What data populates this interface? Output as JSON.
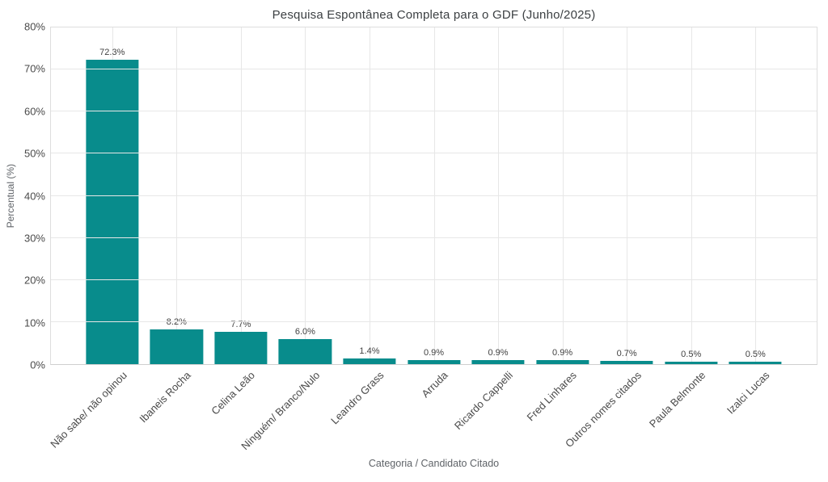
{
  "chart_data": {
    "type": "bar",
    "title": "Pesquisa Espontânea Completa para o GDF (Junho/2025)",
    "xlabel": "Categoria / Candidato Citado",
    "ylabel": "Percentual (%)",
    "categories": [
      "Não sabe/ não opinou",
      "Ibaneis Rocha",
      "Celina Leão",
      "Ninguém/ Branco/Nulo",
      "Leandro Grass",
      "Arruda",
      "Ricardo Cappelli",
      "Fred Linhares",
      "Outros nomes citados",
      "Paula Belmonte",
      "Izalci Lucas"
    ],
    "values": [
      72.3,
      8.2,
      7.7,
      6.0,
      1.4,
      0.9,
      0.9,
      0.9,
      0.7,
      0.5,
      0.5
    ],
    "value_labels": [
      "72.3%",
      "8.2%",
      "7.7%",
      "6.0%",
      "1.4%",
      "0.9%",
      "0.9%",
      "0.9%",
      "0.7%",
      "0.5%",
      "0.5%"
    ],
    "ylim": [
      0,
      80
    ],
    "ytick_step": 10,
    "ytick_labels": [
      "0%",
      "10%",
      "20%",
      "30%",
      "40%",
      "50%",
      "60%",
      "70%",
      "80%"
    ],
    "grid": "horizontal and vertical light gray gridlines, full border box",
    "legend_position": "none",
    "bar_color": "#088C8C",
    "grid_color": "#e7e7e7",
    "title_color": "#3c4043",
    "tick_color": "#4a4a4a",
    "axis_title_color": "#5f6368"
  }
}
